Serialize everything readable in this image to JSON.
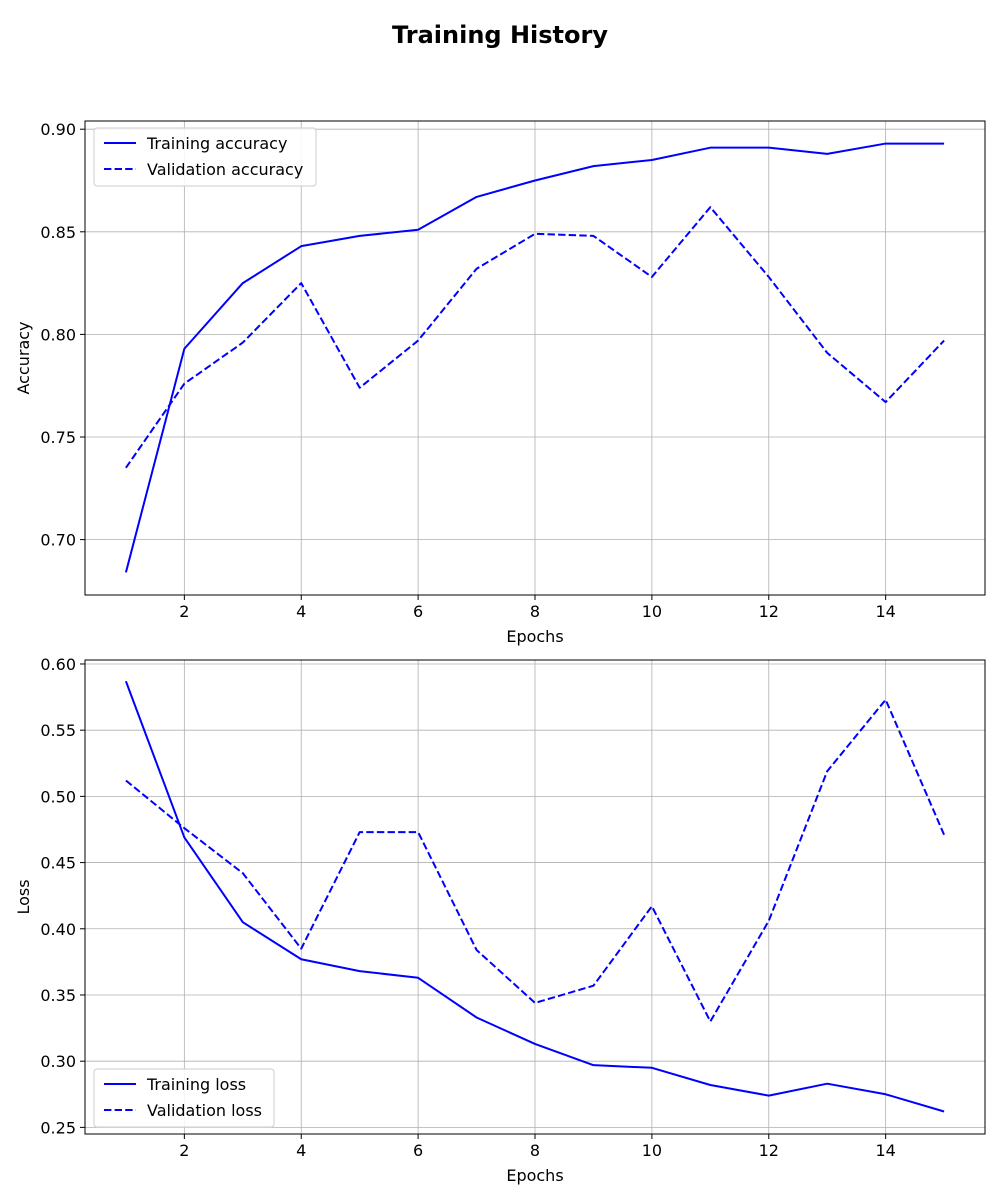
{
  "figure": {
    "title": "Training History"
  },
  "chart_data": [
    {
      "type": "line",
      "xlabel": "Epochs",
      "ylabel": "Accuracy",
      "xlim": [
        0.3,
        15.7
      ],
      "ylim": [
        0.673,
        0.904
      ],
      "xticks": [
        2,
        4,
        6,
        8,
        10,
        12,
        14
      ],
      "yticks": [
        0.7,
        0.75,
        0.8,
        0.85,
        0.9
      ],
      "ytick_decimals": 2,
      "grid": true,
      "legend": "top-left",
      "x": [
        1,
        2,
        3,
        4,
        5,
        6,
        7,
        8,
        9,
        10,
        11,
        12,
        13,
        14,
        15
      ],
      "series": [
        {
          "name": "Training accuracy",
          "color": "#0000ff",
          "style": "solid",
          "values": [
            0.684,
            0.793,
            0.825,
            0.843,
            0.848,
            0.851,
            0.867,
            0.875,
            0.882,
            0.885,
            0.891,
            0.891,
            0.888,
            0.893,
            0.893
          ]
        },
        {
          "name": "Validation accuracy",
          "color": "#0000ff",
          "style": "dashed",
          "values": [
            0.735,
            0.776,
            0.796,
            0.825,
            0.774,
            0.797,
            0.832,
            0.849,
            0.848,
            0.828,
            0.862,
            0.828,
            0.791,
            0.767,
            0.797
          ]
        }
      ]
    },
    {
      "type": "line",
      "xlabel": "Epochs",
      "ylabel": "Loss",
      "xlim": [
        0.3,
        15.7
      ],
      "ylim": [
        0.245,
        0.603
      ],
      "xticks": [
        2,
        4,
        6,
        8,
        10,
        12,
        14
      ],
      "yticks": [
        0.25,
        0.3,
        0.35,
        0.4,
        0.45,
        0.5,
        0.55,
        0.6
      ],
      "ytick_decimals": 2,
      "grid": true,
      "legend": "bottom-left",
      "x": [
        1,
        2,
        3,
        4,
        5,
        6,
        7,
        8,
        9,
        10,
        11,
        12,
        13,
        14,
        15
      ],
      "series": [
        {
          "name": "Training loss",
          "color": "#0000ff",
          "style": "solid",
          "values": [
            0.587,
            0.469,
            0.405,
            0.377,
            0.368,
            0.363,
            0.333,
            0.313,
            0.297,
            0.295,
            0.282,
            0.274,
            0.283,
            0.275,
            0.262
          ]
        },
        {
          "name": "Validation loss",
          "color": "#0000ff",
          "style": "dashed",
          "values": [
            0.512,
            0.476,
            0.442,
            0.385,
            0.473,
            0.473,
            0.384,
            0.344,
            0.357,
            0.417,
            0.33,
            0.406,
            0.519,
            0.573,
            0.471
          ]
        }
      ]
    }
  ]
}
